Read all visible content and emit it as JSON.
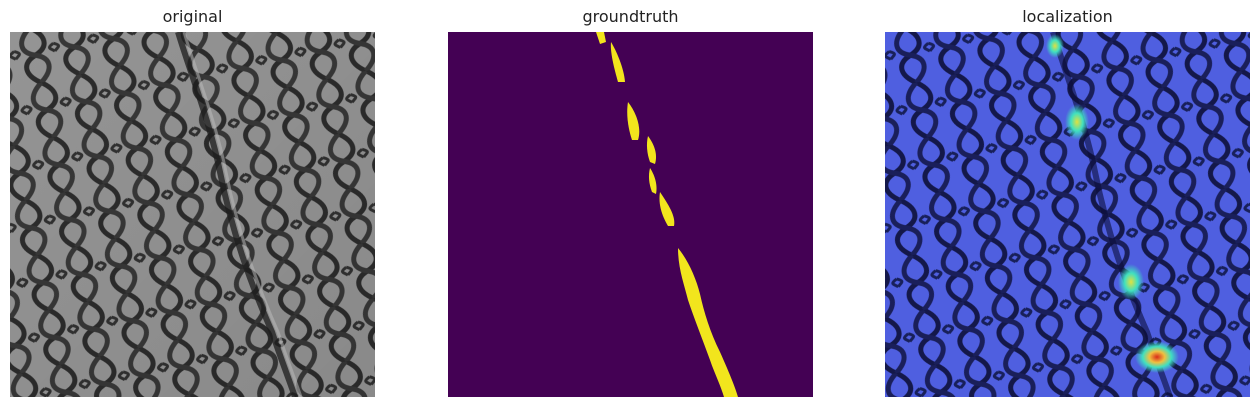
{
  "panels": [
    {
      "title": "original"
    },
    {
      "title": "groundtruth"
    },
    {
      "title": "localization"
    }
  ],
  "colors": {
    "mesh_background": "#9a9a9a",
    "mesh_wire": "#2e2e2e",
    "mask_background": "#440154",
    "mask_defect": "#f2e51d",
    "heatmap_overlay": "#3048e8",
    "heatmap_hot": "#d92a1a"
  }
}
